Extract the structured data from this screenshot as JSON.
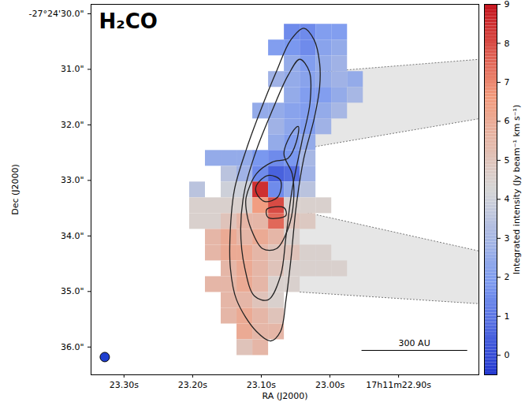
{
  "chart_data": {
    "type": "heatmap",
    "title": "H₂CO",
    "x_label": "RA (J2000)",
    "y_label": "Dec (J2000)",
    "xlim": [
      23.348,
      22.783
    ],
    "ylim": [
      36.5,
      29.83
    ],
    "xticks": [
      {
        "value": 23.3,
        "label": "23.30s"
      },
      {
        "value": 23.2,
        "label": "23.20s"
      },
      {
        "value": 23.1,
        "label": "23.10s"
      },
      {
        "value": 23.0,
        "label": "23.00s"
      },
      {
        "value": 22.9,
        "label": "17h11m22.90s"
      }
    ],
    "yticks": [
      {
        "value": 30,
        "label": "-27°24'30.0\""
      },
      {
        "value": 31,
        "label": "31.0\""
      },
      {
        "value": 32,
        "label": "32.0\""
      },
      {
        "value": 33,
        "label": "33.0\""
      },
      {
        "value": 34,
        "label": "34.0\""
      },
      {
        "value": 35,
        "label": "35.0\""
      },
      {
        "value": 36,
        "label": "36.0\""
      }
    ],
    "colorbar": {
      "label": "Integrated intensity (Jy beam⁻¹ km s⁻¹)",
      "range": [
        -0.5,
        9
      ],
      "ticks": [
        0,
        1,
        2,
        3,
        4,
        5,
        6,
        7,
        8,
        9
      ]
    },
    "cells": {
      "ra_start": 23.193,
      "ra_step": -0.023,
      "dec_start": 30.33,
      "dec_step": 0.284,
      "values": [
        [
          null,
          null,
          null,
          null,
          null,
          null,
          1.5,
          1.5,
          2,
          2,
          null,
          null
        ],
        [
          null,
          null,
          null,
          null,
          null,
          2,
          1.8,
          1.5,
          2.2,
          2.5,
          null,
          null
        ],
        [
          null,
          null,
          null,
          null,
          null,
          null,
          2.5,
          2,
          2.5,
          2.8,
          null,
          null
        ],
        [
          null,
          null,
          null,
          null,
          null,
          2.8,
          2.5,
          2.2,
          2.5,
          2.8,
          2.5,
          null
        ],
        [
          null,
          null,
          null,
          null,
          null,
          null,
          2.5,
          2,
          2,
          2.5,
          3,
          null
        ],
        [
          null,
          null,
          null,
          null,
          2.5,
          2.5,
          2.2,
          2,
          2.5,
          3,
          null,
          null
        ],
        [
          null,
          null,
          null,
          null,
          null,
          2.8,
          2.3,
          2,
          2.8,
          null,
          null,
          null
        ],
        [
          null,
          null,
          null,
          null,
          null,
          2.5,
          2,
          2.5,
          null,
          null,
          null,
          null
        ],
        [
          null,
          2.5,
          2.5,
          2.5,
          1.8,
          1.5,
          1.8,
          3,
          null,
          null,
          null,
          null
        ],
        [
          null,
          null,
          3.5,
          2.8,
          1.5,
          0.5,
          0.8,
          2.8,
          null,
          null,
          null,
          null
        ],
        [
          3.5,
          null,
          4,
          4,
          8.5,
          1.5,
          2.5,
          3.5,
          null,
          null,
          null,
          null
        ],
        [
          4.5,
          4.5,
          4.5,
          4.5,
          6.5,
          8,
          4.5,
          4.5,
          4.5,
          null,
          null,
          null
        ],
        [
          4.5,
          4.5,
          5,
          5.5,
          5.5,
          7.5,
          5,
          4.8,
          null,
          null,
          null,
          null
        ],
        [
          null,
          5.5,
          6,
          5.5,
          6,
          5.5,
          4.5,
          null,
          null,
          null,
          null,
          null
        ],
        [
          null,
          5.5,
          6,
          6,
          5.5,
          5,
          5,
          4.5,
          4.5,
          null,
          null,
          null
        ],
        [
          null,
          null,
          5.5,
          6,
          5.5,
          5,
          4.5,
          4.5,
          4.5,
          4.5,
          null,
          null
        ],
        [
          null,
          5.5,
          5.5,
          6,
          5.5,
          4.5,
          4.5,
          null,
          null,
          null,
          null,
          null
        ],
        [
          null,
          null,
          5.5,
          5.5,
          5,
          4.5,
          null,
          null,
          null,
          null,
          null,
          null
        ],
        [
          null,
          null,
          5.5,
          6,
          5.5,
          5,
          null,
          null,
          null,
          null,
          null,
          null
        ],
        [
          null,
          null,
          null,
          6,
          5.5,
          5.5,
          null,
          null,
          null,
          null,
          null,
          null
        ],
        [
          null,
          null,
          null,
          5,
          5.5,
          null,
          null,
          null,
          null,
          null,
          null,
          null
        ]
      ]
    },
    "contours": [
      [
        [
          23.038,
          30.26
        ],
        [
          23.023,
          30.47
        ],
        [
          23.015,
          30.89
        ],
        [
          23.015,
          31.32
        ],
        [
          23.023,
          31.89
        ],
        [
          23.038,
          32.6
        ],
        [
          23.049,
          33.45
        ],
        [
          23.057,
          34.44
        ],
        [
          23.064,
          35.15
        ],
        [
          23.072,
          35.72
        ],
        [
          23.086,
          35.89
        ],
        [
          23.107,
          35.72
        ],
        [
          23.136,
          35.15
        ],
        [
          23.145,
          34.58
        ],
        [
          23.145,
          33.87
        ],
        [
          23.139,
          33.16
        ],
        [
          23.122,
          32.45
        ],
        [
          23.101,
          31.74
        ],
        [
          23.078,
          31.04
        ],
        [
          23.057,
          30.47
        ]
      ],
      [
        [
          23.044,
          30.82
        ],
        [
          23.03,
          31.04
        ],
        [
          23.029,
          31.6
        ],
        [
          23.041,
          32.31
        ],
        [
          23.055,
          33.16
        ],
        [
          23.064,
          34.01
        ],
        [
          23.072,
          34.72
        ],
        [
          23.09,
          35.15
        ],
        [
          23.11,
          35.08
        ],
        [
          23.124,
          34.58
        ],
        [
          23.13,
          33.87
        ],
        [
          23.124,
          33.16
        ],
        [
          23.107,
          32.45
        ],
        [
          23.084,
          31.74
        ],
        [
          23.061,
          31.11
        ]
      ],
      [
        [
          23.122,
          33.3
        ],
        [
          23.107,
          32.88
        ],
        [
          23.084,
          32.67
        ],
        [
          23.061,
          32.6
        ],
        [
          23.049,
          32.31
        ],
        [
          23.046,
          32.03
        ],
        [
          23.053,
          32.1
        ],
        [
          23.067,
          32.52
        ],
        [
          23.055,
          32.88
        ],
        [
          23.053,
          33.38
        ],
        [
          23.061,
          33.87
        ],
        [
          23.078,
          34.23
        ],
        [
          23.098,
          34.23
        ],
        [
          23.115,
          33.87
        ],
        [
          23.122,
          33.52
        ]
      ],
      [
        [
          23.107,
          33.09
        ],
        [
          23.09,
          32.91
        ],
        [
          23.072,
          33.0
        ],
        [
          23.076,
          33.3
        ],
        [
          23.095,
          33.38
        ],
        [
          23.107,
          33.23
        ]
      ],
      [
        [
          23.092,
          33.52
        ],
        [
          23.067,
          33.49
        ],
        [
          23.064,
          33.63
        ],
        [
          23.09,
          33.67
        ]
      ]
    ],
    "outflow_cones": [
      [
        [
          23.026,
          31.06
        ],
        [
          22.783,
          30.82
        ],
        [
          22.783,
          31.89
        ],
        [
          23.049,
          32.45
        ]
      ],
      [
        [
          23.055,
          33.52
        ],
        [
          22.783,
          34.27
        ],
        [
          22.783,
          35.22
        ],
        [
          23.044,
          35.01
        ]
      ]
    ],
    "scale_bar": {
      "label": "300 AU",
      "x": [
        22.954,
        22.8
      ],
      "y": 36.06
    },
    "beam": {
      "x": 23.328,
      "y": 36.18
    }
  }
}
